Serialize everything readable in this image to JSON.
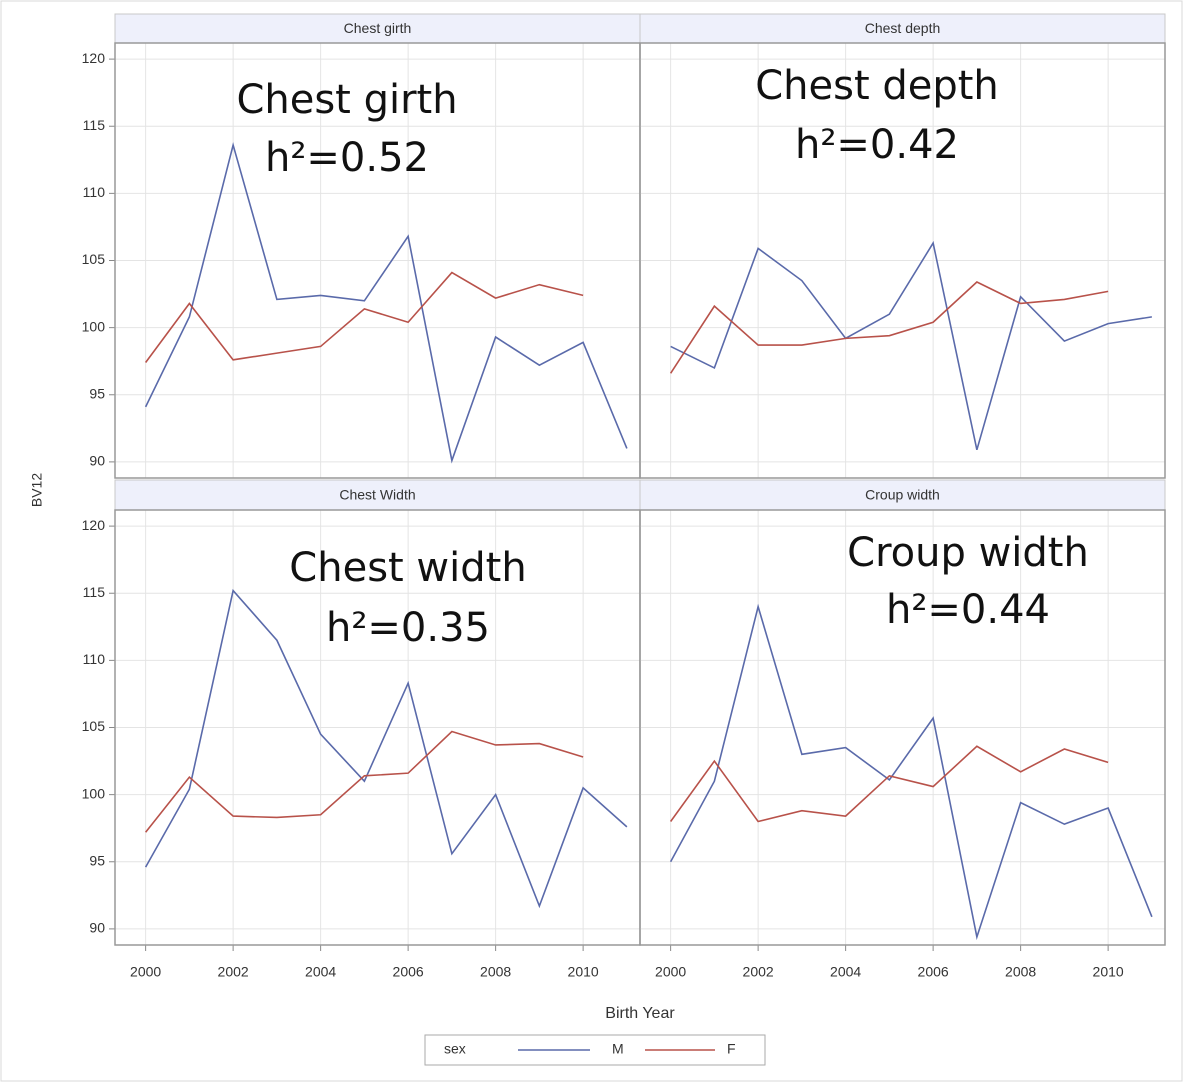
{
  "ylabel": "BV12",
  "xlabel": "Birth Year",
  "legend_title": "sex",
  "chart_data": [
    {
      "type": "line",
      "title": "Chest girth",
      "annotations": [
        "Chest girth",
        "h²=0.52"
      ],
      "x": [
        2000,
        2001,
        2002,
        2003,
        2004,
        2005,
        2006,
        2007,
        2008,
        2009,
        2010,
        2011
      ],
      "xlim": [
        1999.3,
        2011.3
      ],
      "xticks": [
        2000,
        2002,
        2004,
        2006,
        2008,
        2010
      ],
      "ylim": [
        88.8,
        121.2
      ],
      "yticks": [
        90,
        95,
        100,
        105,
        110,
        115,
        120
      ],
      "grid": true,
      "series": [
        {
          "name": "M",
          "color": "#5a6aaa",
          "values": [
            94.1,
            100.8,
            113.6,
            102.1,
            102.4,
            102.0,
            106.8,
            90.1,
            99.3,
            97.2,
            98.9,
            91.0
          ]
        },
        {
          "name": "F",
          "color": "#b8524a",
          "values": [
            97.4,
            101.8,
            97.6,
            98.1,
            98.6,
            101.4,
            100.4,
            104.1,
            102.2,
            103.2,
            102.4,
            null
          ]
        }
      ]
    },
    {
      "type": "line",
      "title": "Chest depth",
      "annotations": [
        "Chest depth",
        "h²=0.42"
      ],
      "x": [
        2000,
        2001,
        2002,
        2003,
        2004,
        2005,
        2006,
        2007,
        2008,
        2009,
        2010,
        2011
      ],
      "xlim": [
        1999.3,
        2011.3
      ],
      "xticks": [
        2000,
        2002,
        2004,
        2006,
        2008,
        2010
      ],
      "ylim": [
        88.8,
        121.2
      ],
      "yticks": [
        90,
        95,
        100,
        105,
        110,
        115,
        120
      ],
      "grid": true,
      "series": [
        {
          "name": "M",
          "color": "#5a6aaa",
          "values": [
            98.6,
            97.0,
            105.9,
            103.5,
            99.2,
            101.0,
            106.3,
            90.9,
            102.3,
            99.0,
            100.3,
            100.8
          ]
        },
        {
          "name": "F",
          "color": "#b8524a",
          "values": [
            96.6,
            101.6,
            98.7,
            98.7,
            99.2,
            99.4,
            100.4,
            103.4,
            101.8,
            102.1,
            102.7,
            null
          ]
        }
      ]
    },
    {
      "type": "line",
      "title": "Chest Width",
      "annotations": [
        "Chest width",
        "h²=0.35"
      ],
      "x": [
        2000,
        2001,
        2002,
        2003,
        2004,
        2005,
        2006,
        2007,
        2008,
        2009,
        2010,
        2011
      ],
      "xlim": [
        1999.3,
        2011.3
      ],
      "xticks": [
        2000,
        2002,
        2004,
        2006,
        2008,
        2010
      ],
      "ylim": [
        88.8,
        121.2
      ],
      "yticks": [
        90,
        95,
        100,
        105,
        110,
        115,
        120
      ],
      "grid": true,
      "series": [
        {
          "name": "M",
          "color": "#5a6aaa",
          "values": [
            94.6,
            100.4,
            115.2,
            111.5,
            104.5,
            101.0,
            108.3,
            95.6,
            100.0,
            91.7,
            100.5,
            97.6
          ]
        },
        {
          "name": "F",
          "color": "#b8524a",
          "values": [
            97.2,
            101.3,
            98.4,
            98.3,
            98.5,
            101.4,
            101.6,
            104.7,
            103.7,
            103.8,
            102.8,
            null
          ]
        }
      ]
    },
    {
      "type": "line",
      "title": "Croup width",
      "annotations": [
        "Croup width",
        "h²=0.44"
      ],
      "x": [
        2000,
        2001,
        2002,
        2003,
        2004,
        2005,
        2006,
        2007,
        2008,
        2009,
        2010,
        2011
      ],
      "xlim": [
        1999.3,
        2011.3
      ],
      "xticks": [
        2000,
        2002,
        2004,
        2006,
        2008,
        2010
      ],
      "ylim": [
        88.8,
        121.2
      ],
      "yticks": [
        90,
        95,
        100,
        105,
        110,
        115,
        120
      ],
      "grid": true,
      "series": [
        {
          "name": "M",
          "color": "#5a6aaa",
          "values": [
            95.0,
            101.0,
            114.0,
            103.0,
            103.5,
            101.1,
            105.7,
            89.4,
            99.4,
            97.8,
            99.0,
            90.9
          ]
        },
        {
          "name": "F",
          "color": "#b8524a",
          "values": [
            98.0,
            102.5,
            98.0,
            98.8,
            98.4,
            101.4,
            100.6,
            103.6,
            101.7,
            103.4,
            102.4,
            null
          ]
        }
      ]
    }
  ]
}
